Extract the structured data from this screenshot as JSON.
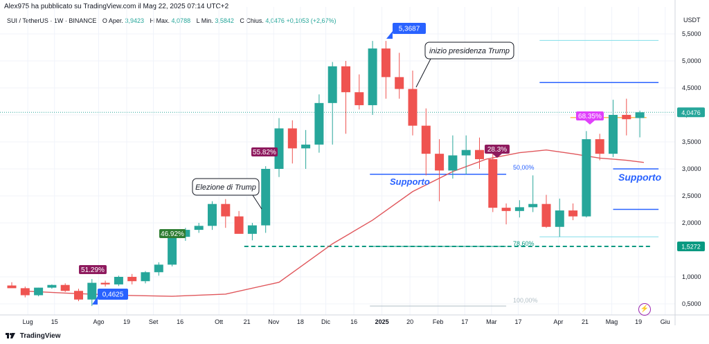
{
  "header": {
    "publisher": "Alex975 ha pubblicato su TradingView.com il Mag 22, 2025 07:14 UTC+2"
  },
  "legend": {
    "symbol": "SUI / TetherUS · 1W · BINANCE",
    "open_label": "O",
    "open_text": "Aper.",
    "open": "3,9423",
    "high_label": "H",
    "high_text": "Max.",
    "high": "4,0788",
    "low_label": "L",
    "low_text": "Min.",
    "low": "3,5842",
    "close_label": "C",
    "close_text": "Chius.",
    "close": "4,0476",
    "change": "+0,1053 (+2,67%)"
  },
  "footer": {
    "brand": "TradingView"
  },
  "chart_data": {
    "type": "candlestick",
    "unit": "USDT",
    "y_ticks": [
      "5,5000",
      "5,0000",
      "4,5000",
      "4,0000",
      "3,5000",
      "3,0000",
      "2,5000",
      "2,0000",
      "1,0000",
      "0,5000"
    ],
    "x_ticks": [
      "Lug",
      "15",
      "Ago",
      "19",
      "Set",
      "16",
      "Ott",
      "21",
      "Nov",
      "18",
      "Dic",
      "16",
      "2025",
      "20",
      "Feb",
      "17",
      "Mar",
      "17",
      "Apr",
      "21",
      "Mag",
      "19",
      "Giu"
    ],
    "candles": [
      {
        "o": 0.84,
        "h": 0.9,
        "l": 0.8,
        "c": 0.79
      },
      {
        "o": 0.79,
        "h": 0.82,
        "l": 0.62,
        "c": 0.66
      },
      {
        "o": 0.66,
        "h": 0.8,
        "l": 0.64,
        "c": 0.8
      },
      {
        "o": 0.8,
        "h": 0.86,
        "l": 0.78,
        "c": 0.85
      },
      {
        "o": 0.85,
        "h": 0.88,
        "l": 0.72,
        "c": 0.74
      },
      {
        "o": 0.74,
        "h": 0.78,
        "l": 0.55,
        "c": 0.58
      },
      {
        "o": 0.58,
        "h": 0.96,
        "l": 0.46,
        "c": 0.89
      },
      {
        "o": 0.89,
        "h": 0.93,
        "l": 0.82,
        "c": 0.86
      },
      {
        "o": 0.86,
        "h": 1.02,
        "l": 0.83,
        "c": 1.0
      },
      {
        "o": 1.0,
        "h": 1.05,
        "l": 0.86,
        "c": 0.92
      },
      {
        "o": 0.92,
        "h": 1.1,
        "l": 0.88,
        "c": 1.08
      },
      {
        "o": 1.08,
        "h": 1.25,
        "l": 1.02,
        "c": 1.21
      },
      {
        "o": 1.21,
        "h": 1.78,
        "l": 1.18,
        "c": 1.72
      },
      {
        "o": 1.72,
        "h": 1.9,
        "l": 1.64,
        "c": 1.86
      },
      {
        "o": 1.86,
        "h": 2.0,
        "l": 1.8,
        "c": 1.94
      },
      {
        "o": 1.94,
        "h": 2.4,
        "l": 1.86,
        "c": 2.35
      },
      {
        "o": 2.35,
        "h": 2.44,
        "l": 1.9,
        "c": 2.12
      },
      {
        "o": 2.12,
        "h": 2.22,
        "l": 1.8,
        "c": 1.78
      },
      {
        "o": 1.78,
        "h": 2.0,
        "l": 1.65,
        "c": 1.95
      },
      {
        "o": 1.95,
        "h": 3.05,
        "l": 1.8,
        "c": 3.0
      },
      {
        "o": 3.0,
        "h": 3.94,
        "l": 2.85,
        "c": 3.75
      },
      {
        "o": 3.75,
        "h": 3.9,
        "l": 3.1,
        "c": 3.38
      },
      {
        "o": 3.38,
        "h": 3.72,
        "l": 3.0,
        "c": 3.45
      },
      {
        "o": 3.45,
        "h": 4.38,
        "l": 3.3,
        "c": 4.22
      },
      {
        "o": 4.22,
        "h": 4.98,
        "l": 3.45,
        "c": 4.9
      },
      {
        "o": 4.9,
        "h": 5.0,
        "l": 3.65,
        "c": 4.42
      },
      {
        "o": 4.42,
        "h": 4.75,
        "l": 4.1,
        "c": 4.18
      },
      {
        "o": 4.18,
        "h": 5.37,
        "l": 4.0,
        "c": 5.23
      },
      {
        "o": 5.23,
        "h": 5.37,
        "l": 4.3,
        "c": 4.7
      },
      {
        "o": 4.7,
        "h": 5.15,
        "l": 4.3,
        "c": 4.48
      },
      {
        "o": 4.48,
        "h": 4.82,
        "l": 3.62,
        "c": 3.8
      },
      {
        "o": 3.8,
        "h": 4.12,
        "l": 2.88,
        "c": 3.28
      },
      {
        "o": 3.28,
        "h": 3.55,
        "l": 2.4,
        "c": 2.97
      },
      {
        "o": 2.97,
        "h": 3.62,
        "l": 2.82,
        "c": 3.25
      },
      {
        "o": 3.25,
        "h": 3.62,
        "l": 2.9,
        "c": 3.35
      },
      {
        "o": 3.35,
        "h": 3.58,
        "l": 3.0,
        "c": 3.18
      },
      {
        "o": 3.18,
        "h": 3.45,
        "l": 2.2,
        "c": 2.28
      },
      {
        "o": 2.28,
        "h": 2.36,
        "l": 1.97,
        "c": 2.22
      },
      {
        "o": 2.22,
        "h": 2.42,
        "l": 2.1,
        "c": 2.29
      },
      {
        "o": 2.29,
        "h": 2.88,
        "l": 2.2,
        "c": 2.35
      },
      {
        "o": 2.35,
        "h": 2.52,
        "l": 1.9,
        "c": 1.92
      },
      {
        "o": 1.92,
        "h": 2.45,
        "l": 1.72,
        "c": 2.23
      },
      {
        "o": 2.23,
        "h": 2.36,
        "l": 2.05,
        "c": 2.12
      },
      {
        "o": 2.12,
        "h": 3.7,
        "l": 2.1,
        "c": 3.55
      },
      {
        "o": 3.55,
        "h": 3.65,
        "l": 3.16,
        "c": 3.28
      },
      {
        "o": 3.28,
        "h": 4.28,
        "l": 3.22,
        "c": 4.0
      },
      {
        "o": 4.0,
        "h": 4.3,
        "l": 3.62,
        "c": 3.92
      },
      {
        "o": 3.942,
        "h": 4.079,
        "l": 3.584,
        "c": 4.048
      }
    ],
    "sma": [
      [
        0.73,
        0.74
      ],
      [
        4.0,
        0.7
      ],
      [
        8.0,
        0.66
      ],
      [
        12.0,
        0.64
      ],
      [
        16.0,
        0.68
      ],
      [
        20.0,
        0.9
      ],
      [
        24.0,
        1.58
      ],
      [
        27.0,
        2.05
      ],
      [
        30.0,
        2.58
      ],
      [
        33.0,
        2.95
      ],
      [
        35.5,
        3.18
      ],
      [
        38.0,
        3.3
      ],
      [
        40.0,
        3.35
      ],
      [
        42.0,
        3.28
      ],
      [
        44.0,
        3.2
      ],
      [
        46.0,
        3.16
      ],
      [
        47.3,
        3.12
      ]
    ],
    "hlines": [
      {
        "value": 1.5272,
        "style": "dashed",
        "color": "#089981",
        "x0": 17.4,
        "x1": 47.9
      },
      {
        "value": 1.5272,
        "style": "solid",
        "color": "#089981",
        "x0": 26.8,
        "x1": 37.0
      },
      {
        "value": 2.9,
        "style": "solid",
        "color": "#2962ff",
        "x0": 26.8,
        "x1": 37.0
      },
      {
        "value": 5.38,
        "style": "solid",
        "color": "#80deea",
        "x0": 39.5,
        "x1": 48.4
      },
      {
        "value": 4.6,
        "style": "solid",
        "color": "#2962ff",
        "x0": 39.5,
        "x1": 48.4
      },
      {
        "value": 3.0,
        "style": "solid",
        "color": "#2962ff",
        "x0": 45.0,
        "x1": 48.4
      },
      {
        "value": 2.25,
        "style": "solid",
        "color": "#2962ff",
        "x0": 45.0,
        "x1": 48.4
      },
      {
        "value": 1.72,
        "style": "solid",
        "color": "#80deea",
        "x0": 39.5,
        "x1": 48.4
      },
      {
        "value": 3.95,
        "style": "solid",
        "color": "#ff9800",
        "x0": 41.8,
        "x1": 47.5
      },
      {
        "value": 0.46,
        "style": "solid",
        "color": "#b0bec5",
        "x0": 26.8,
        "x1": 37.0
      }
    ],
    "labels": [
      {
        "text": "5,3687",
        "type": "price",
        "value": 5.3687
      },
      {
        "text": "0,4625",
        "type": "price",
        "value": 0.4625
      },
      {
        "text": "51.29%",
        "type": "pct"
      },
      {
        "text": "46.92%",
        "type": "pct"
      },
      {
        "text": "55.82%",
        "type": "pct"
      },
      {
        "text": "28.3%",
        "type": "pct"
      },
      {
        "text": "68.35%",
        "type": "pct"
      },
      {
        "text": "Elezione di Trump",
        "type": "callout"
      },
      {
        "text": "inizio presidenza Trump",
        "type": "callout"
      },
      {
        "text": "Supporto",
        "type": "note"
      },
      {
        "text": "Supporto",
        "type": "note"
      },
      {
        "text": "50,00%",
        "type": "fib"
      },
      {
        "text": "78,60%",
        "type": "fib"
      },
      {
        "text": "100,00%",
        "type": "fib"
      }
    ],
    "last_price": "4,0476",
    "level_badge": "1,5272",
    "grid": true
  }
}
